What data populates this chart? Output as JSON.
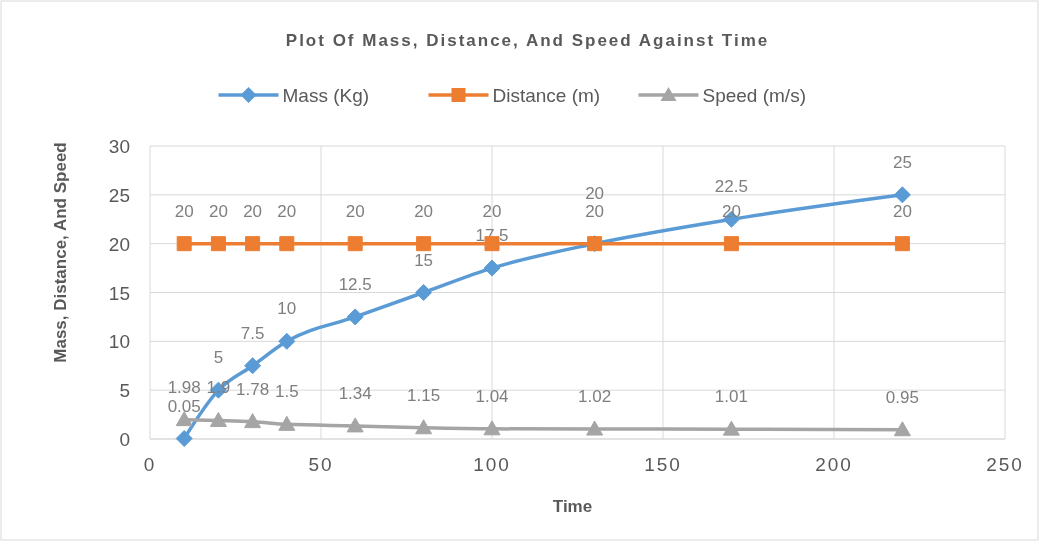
{
  "chart_data": {
    "type": "line",
    "title": "Plot Of Mass, Distance, And Speed Against Time",
    "xlabel": "Time",
    "ylabel": "Mass, Distance, And Speed",
    "x": [
      10,
      20,
      30,
      40,
      60,
      80,
      100,
      130,
      170,
      220
    ],
    "series": [
      {
        "name": "Mass (Kg)",
        "color": "#5b9bd5",
        "marker": "diamond",
        "values": [
          0.05,
          5,
          7.5,
          10,
          12.5,
          15,
          17.5,
          20,
          22.5,
          25
        ]
      },
      {
        "name": "Distance (m)",
        "color": "#ed7d31",
        "marker": "square",
        "values": [
          20,
          20,
          20,
          20,
          20,
          20,
          20,
          20,
          20,
          20
        ]
      },
      {
        "name": "Speed (m/s)",
        "color": "#a5a5a5",
        "marker": "triangle",
        "values": [
          1.98,
          1.9,
          1.78,
          1.5,
          1.34,
          1.15,
          1.04,
          1.02,
          1.01,
          0.95
        ]
      }
    ],
    "xlim": [
      0,
      250
    ],
    "xticks": [
      0,
      50,
      100,
      150,
      200,
      250
    ],
    "ylim": [
      0,
      30
    ],
    "yticks": [
      0,
      5,
      10,
      15,
      20,
      25,
      30
    ],
    "grid": true,
    "legend": "top",
    "data_labels": true,
    "line_style": "solid"
  }
}
